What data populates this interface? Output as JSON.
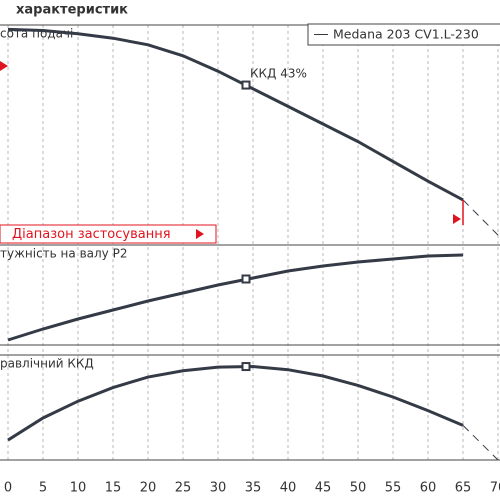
{
  "chart_data": {
    "type": "line",
    "title": "характеристик",
    "legend": "Medana 203 CV1.L-230",
    "color": "#343a46",
    "range_color": "#e0141e",
    "range_label": "Діапазон застосування",
    "annotation": "ККД  43%",
    "xlim": [
      0,
      70
    ],
    "xticks": [
      0,
      5,
      10,
      15,
      20,
      25,
      30,
      35,
      40,
      45,
      50,
      55,
      60,
      65,
      70
    ],
    "range_x": [
      0,
      65
    ],
    "panels": [
      {
        "label": "сота подачі",
        "ylim": [
          0,
          100
        ],
        "x": [
          0,
          5,
          10,
          15,
          20,
          25,
          30,
          35,
          40,
          45,
          50,
          55,
          60,
          65
        ],
        "values": [
          98,
          97.5,
          96,
          94,
          91,
          86,
          79,
          71,
          63,
          55,
          47,
          38,
          29,
          20.5
        ],
        "extension": {
          "x": [
            65,
            70
          ],
          "values": [
            20.5,
            4.5
          ]
        },
        "marker": {
          "x": 34,
          "value": 72.7
        }
      },
      {
        "label": "тужність на валу P2",
        "ylim": [
          0,
          100
        ],
        "x": [
          0,
          5,
          10,
          15,
          20,
          25,
          30,
          35,
          40,
          45,
          50,
          55,
          60,
          65
        ],
        "values": [
          5,
          16,
          26,
          35,
          44,
          52,
          60,
          67,
          74,
          79,
          83,
          86,
          89,
          90
        ],
        "marker": {
          "x": 34,
          "value": 66
        }
      },
      {
        "label": "равлічний ККД",
        "ylim": [
          0,
          100
        ],
        "x": [
          0,
          5,
          10,
          15,
          20,
          25,
          30,
          35,
          40,
          45,
          50,
          55,
          60,
          65
        ],
        "values": [
          19,
          40,
          56,
          69,
          79,
          85,
          88.5,
          89,
          86,
          80,
          71,
          60,
          47,
          33
        ],
        "extension": {
          "x": [
            65,
            70
          ],
          "values": [
            33,
            0
          ]
        },
        "marker": {
          "x": 34,
          "value": 89
        }
      }
    ]
  }
}
